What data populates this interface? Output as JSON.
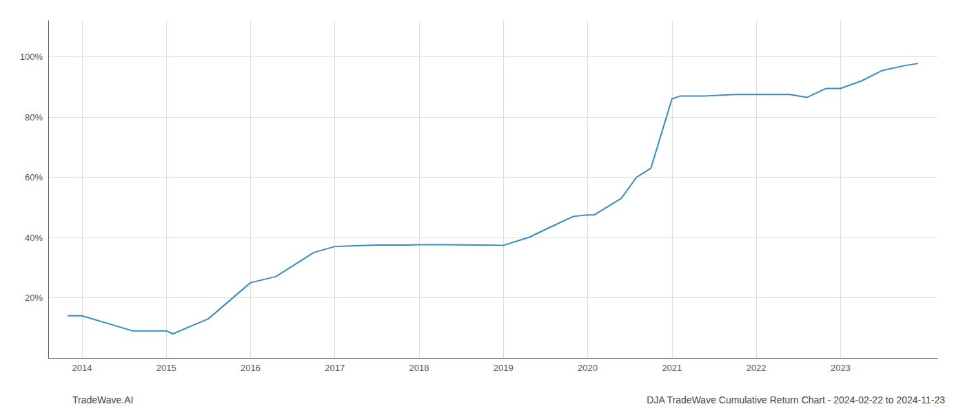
{
  "chart_data": {
    "type": "line",
    "x": [
      2013.83,
      2014.0,
      2014.6,
      2015.0,
      2015.08,
      2015.5,
      2016.0,
      2016.3,
      2016.75,
      2017.0,
      2017.5,
      2017.85,
      2018.0,
      2018.3,
      2018.75,
      2019.0,
      2019.3,
      2019.6,
      2019.83,
      2020.0,
      2020.08,
      2020.4,
      2020.58,
      2020.75,
      2021.0,
      2021.1,
      2021.4,
      2021.75,
      2022.0,
      2022.15,
      2022.4,
      2022.6,
      2022.83,
      2023.0,
      2023.25,
      2023.5,
      2023.75,
      2023.92
    ],
    "values": [
      0.14,
      0.14,
      0.09,
      0.09,
      0.08,
      0.13,
      0.25,
      0.27,
      0.35,
      0.37,
      0.375,
      0.375,
      0.376,
      0.376,
      0.375,
      0.374,
      0.4,
      0.44,
      0.47,
      0.475,
      0.475,
      0.53,
      0.6,
      0.63,
      0.86,
      0.87,
      0.87,
      0.875,
      0.875,
      0.875,
      0.875,
      0.865,
      0.895,
      0.895,
      0.92,
      0.955,
      0.97,
      0.978
    ],
    "color": "#3a8bbf",
    "xlim": [
      2013.6,
      2024.15
    ],
    "xticks": [
      2014,
      2015,
      2016,
      2017,
      2018,
      2019,
      2020,
      2021,
      2022,
      2023
    ],
    "ylim": [
      0.0,
      1.12
    ],
    "yticks": [
      {
        "value": 0.0,
        "label": ""
      },
      {
        "value": 0.2,
        "label": "20%"
      },
      {
        "value": 0.4,
        "label": "40%"
      },
      {
        "value": 0.6,
        "label": "60%"
      },
      {
        "value": 0.8,
        "label": "80%"
      },
      {
        "value": 1.0,
        "label": "100%"
      }
    ],
    "grid": true,
    "annotations": [
      "TradeWave.AI",
      "DJA TradeWave Cumulative Return Chart - 2024-02-22 to 2024-11-23"
    ]
  }
}
